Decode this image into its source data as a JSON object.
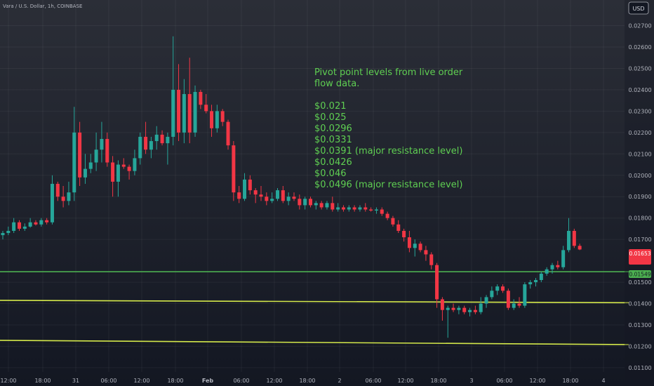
{
  "header": {
    "symbol": "Vara / U.S. Dollar, 1h, COINBASE",
    "currency_button": "USD"
  },
  "annotation": {
    "lines": [
      "Pivot point levels from live order",
      "flow data.",
      "",
      "$0.021",
      "$0.025",
      "$0.0296",
      "$0.0331",
      "$0.0391 (major resistance level)",
      "$0.0426",
      "$0.046",
      "$0.0496 (major resistance level)"
    ],
    "color": "#5fcf52"
  },
  "price_tags": {
    "current": {
      "label": "0.01653",
      "sub": "",
      "color": "#f23645"
    },
    "line": {
      "label": "0.01549",
      "color": "#4caf50"
    }
  },
  "colors": {
    "background": "#131722",
    "up": "#26a69a",
    "down": "#f23645",
    "green_line": "#4caf50",
    "yellow_line": "#d4e84a"
  },
  "chart_data": {
    "type": "candlestick",
    "title": "Vara / U.S. Dollar, 1h, COINBASE",
    "timeframe": "1h",
    "ylim": [
      0.0108,
      0.0282
    ],
    "y_ticks": [
      "0.02700",
      "0.02600",
      "0.02500",
      "0.02400",
      "0.02300",
      "0.02200",
      "0.02100",
      "0.02000",
      "0.01900",
      "0.01800",
      "0.01700",
      "0.01500",
      "0.01400",
      "0.01300",
      "0.01200",
      "0.01100"
    ],
    "x_ticks": [
      "12:00",
      "18:00",
      "31",
      "06:00",
      "12:00",
      "18:00",
      "Feb",
      "06:00",
      "12:00",
      "18:00",
      "2",
      "06:00",
      "12:00",
      "18:00",
      "3",
      "06:00",
      "12:00",
      "18:00",
      "4"
    ],
    "horizontal_lines": [
      {
        "price": 0.01549,
        "color": "#4caf50"
      },
      {
        "from": 0.01415,
        "to": 0.01404,
        "color": "#d4e84a"
      },
      {
        "from": 0.01228,
        "to": 0.01208,
        "color": "#d4e84a"
      }
    ],
    "candles": [
      {
        "o": 0.0172,
        "h": 0.0174,
        "l": 0.017,
        "c": 0.0173
      },
      {
        "o": 0.0173,
        "h": 0.0176,
        "l": 0.0172,
        "c": 0.0174
      },
      {
        "o": 0.0174,
        "h": 0.018,
        "l": 0.0173,
        "c": 0.0178
      },
      {
        "o": 0.0178,
        "h": 0.0179,
        "l": 0.0174,
        "c": 0.0175
      },
      {
        "o": 0.0175,
        "h": 0.01775,
        "l": 0.0174,
        "c": 0.0176
      },
      {
        "o": 0.0176,
        "h": 0.018,
        "l": 0.01755,
        "c": 0.0178
      },
      {
        "o": 0.0178,
        "h": 0.0179,
        "l": 0.01765,
        "c": 0.0177
      },
      {
        "o": 0.0177,
        "h": 0.018,
        "l": 0.0176,
        "c": 0.0179
      },
      {
        "o": 0.0179,
        "h": 0.018,
        "l": 0.0177,
        "c": 0.0178
      },
      {
        "o": 0.0178,
        "h": 0.02,
        "l": 0.0177,
        "c": 0.0196
      },
      {
        "o": 0.0196,
        "h": 0.0197,
        "l": 0.0188,
        "c": 0.019
      },
      {
        "o": 0.019,
        "h": 0.0195,
        "l": 0.0185,
        "c": 0.0188
      },
      {
        "o": 0.0188,
        "h": 0.0197,
        "l": 0.0186,
        "c": 0.0192
      },
      {
        "o": 0.0192,
        "h": 0.0232,
        "l": 0.0188,
        "c": 0.022
      },
      {
        "o": 0.022,
        "h": 0.0225,
        "l": 0.0195,
        "c": 0.0199
      },
      {
        "o": 0.0199,
        "h": 0.021,
        "l": 0.0196,
        "c": 0.0203
      },
      {
        "o": 0.0203,
        "h": 0.021,
        "l": 0.0201,
        "c": 0.0206
      },
      {
        "o": 0.0206,
        "h": 0.022,
        "l": 0.0202,
        "c": 0.0212
      },
      {
        "o": 0.0212,
        "h": 0.0225,
        "l": 0.0206,
        "c": 0.0217
      },
      {
        "o": 0.0217,
        "h": 0.022,
        "l": 0.0204,
        "c": 0.0206
      },
      {
        "o": 0.0206,
        "h": 0.0209,
        "l": 0.019,
        "c": 0.0197
      },
      {
        "o": 0.0197,
        "h": 0.0207,
        "l": 0.019,
        "c": 0.0205
      },
      {
        "o": 0.0205,
        "h": 0.0208,
        "l": 0.0203,
        "c": 0.0204
      },
      {
        "o": 0.0204,
        "h": 0.0205,
        "l": 0.0198,
        "c": 0.0202
      },
      {
        "o": 0.0202,
        "h": 0.0212,
        "l": 0.02,
        "c": 0.0208
      },
      {
        "o": 0.0208,
        "h": 0.022,
        "l": 0.0205,
        "c": 0.0218
      },
      {
        "o": 0.0218,
        "h": 0.0225,
        "l": 0.021,
        "c": 0.0212
      },
      {
        "o": 0.0212,
        "h": 0.0218,
        "l": 0.0208,
        "c": 0.0216
      },
      {
        "o": 0.0216,
        "h": 0.0223,
        "l": 0.0212,
        "c": 0.0219
      },
      {
        "o": 0.0219,
        "h": 0.0221,
        "l": 0.0214,
        "c": 0.0215
      },
      {
        "o": 0.0215,
        "h": 0.022,
        "l": 0.0205,
        "c": 0.0218
      },
      {
        "o": 0.0218,
        "h": 0.0265,
        "l": 0.0214,
        "c": 0.024
      },
      {
        "o": 0.024,
        "h": 0.0252,
        "l": 0.0216,
        "c": 0.022
      },
      {
        "o": 0.022,
        "h": 0.0245,
        "l": 0.0215,
        "c": 0.0238
      },
      {
        "o": 0.0238,
        "h": 0.0255,
        "l": 0.0215,
        "c": 0.022
      },
      {
        "o": 0.022,
        "h": 0.0242,
        "l": 0.0218,
        "c": 0.0239
      },
      {
        "o": 0.0239,
        "h": 0.024,
        "l": 0.0231,
        "c": 0.0233
      },
      {
        "o": 0.0233,
        "h": 0.0238,
        "l": 0.0229,
        "c": 0.023
      },
      {
        "o": 0.023,
        "h": 0.0233,
        "l": 0.0218,
        "c": 0.0222
      },
      {
        "o": 0.0222,
        "h": 0.0233,
        "l": 0.022,
        "c": 0.023
      },
      {
        "o": 0.023,
        "h": 0.0231,
        "l": 0.0223,
        "c": 0.0225
      },
      {
        "o": 0.0225,
        "h": 0.0226,
        "l": 0.0212,
        "c": 0.0214
      },
      {
        "o": 0.0214,
        "h": 0.0216,
        "l": 0.0188,
        "c": 0.0192
      },
      {
        "o": 0.0192,
        "h": 0.0195,
        "l": 0.0187,
        "c": 0.0189
      },
      {
        "o": 0.0189,
        "h": 0.0201,
        "l": 0.0188,
        "c": 0.0198
      },
      {
        "o": 0.0198,
        "h": 0.02,
        "l": 0.0191,
        "c": 0.0193
      },
      {
        "o": 0.0193,
        "h": 0.0194,
        "l": 0.0187,
        "c": 0.0191
      },
      {
        "o": 0.0191,
        "h": 0.0195,
        "l": 0.0188,
        "c": 0.019
      },
      {
        "o": 0.019,
        "h": 0.0192,
        "l": 0.0186,
        "c": 0.0188
      },
      {
        "o": 0.0188,
        "h": 0.0192,
        "l": 0.0187,
        "c": 0.0189
      },
      {
        "o": 0.0189,
        "h": 0.0194,
        "l": 0.0188,
        "c": 0.0193
      },
      {
        "o": 0.0193,
        "h": 0.0195,
        "l": 0.0187,
        "c": 0.0188
      },
      {
        "o": 0.0188,
        "h": 0.0192,
        "l": 0.0186,
        "c": 0.019
      },
      {
        "o": 0.019,
        "h": 0.0192,
        "l": 0.0188,
        "c": 0.0189
      },
      {
        "o": 0.0189,
        "h": 0.0191,
        "l": 0.0184,
        "c": 0.0186
      },
      {
        "o": 0.0186,
        "h": 0.019,
        "l": 0.0184,
        "c": 0.0189
      },
      {
        "o": 0.0189,
        "h": 0.019,
        "l": 0.0185,
        "c": 0.0186
      },
      {
        "o": 0.0186,
        "h": 0.0188,
        "l": 0.0184,
        "c": 0.0187
      },
      {
        "o": 0.0187,
        "h": 0.0188,
        "l": 0.0184,
        "c": 0.0185
      },
      {
        "o": 0.0185,
        "h": 0.0188,
        "l": 0.0184,
        "c": 0.0187
      },
      {
        "o": 0.0187,
        "h": 0.019,
        "l": 0.0183,
        "c": 0.0184
      },
      {
        "o": 0.0184,
        "h": 0.0187,
        "l": 0.0183,
        "c": 0.0185
      },
      {
        "o": 0.0185,
        "h": 0.0186,
        "l": 0.0183,
        "c": 0.0184
      },
      {
        "o": 0.0184,
        "h": 0.0186,
        "l": 0.0183,
        "c": 0.0185
      },
      {
        "o": 0.0185,
        "h": 0.0186,
        "l": 0.0183,
        "c": 0.0184
      },
      {
        "o": 0.0184,
        "h": 0.0186,
        "l": 0.0183,
        "c": 0.0185
      },
      {
        "o": 0.0185,
        "h": 0.0187,
        "l": 0.0183,
        "c": 0.0184
      },
      {
        "o": 0.0184,
        "h": 0.0185,
        "l": 0.0183,
        "c": 0.01835
      },
      {
        "o": 0.01835,
        "h": 0.0185,
        "l": 0.0182,
        "c": 0.0184
      },
      {
        "o": 0.0184,
        "h": 0.0185,
        "l": 0.0181,
        "c": 0.0182
      },
      {
        "o": 0.0182,
        "h": 0.0183,
        "l": 0.0179,
        "c": 0.018
      },
      {
        "o": 0.018,
        "h": 0.0181,
        "l": 0.0176,
        "c": 0.0177
      },
      {
        "o": 0.0177,
        "h": 0.0179,
        "l": 0.0173,
        "c": 0.0174
      },
      {
        "o": 0.0174,
        "h": 0.0175,
        "l": 0.0169,
        "c": 0.0171
      },
      {
        "o": 0.0171,
        "h": 0.0174,
        "l": 0.0164,
        "c": 0.0166
      },
      {
        "o": 0.0166,
        "h": 0.017,
        "l": 0.0162,
        "c": 0.0168
      },
      {
        "o": 0.0168,
        "h": 0.0169,
        "l": 0.0164,
        "c": 0.0165
      },
      {
        "o": 0.0165,
        "h": 0.0167,
        "l": 0.016,
        "c": 0.0163
      },
      {
        "o": 0.0163,
        "h": 0.0164,
        "l": 0.0156,
        "c": 0.0158
      },
      {
        "o": 0.0158,
        "h": 0.0159,
        "l": 0.0138,
        "c": 0.0142
      },
      {
        "o": 0.0142,
        "h": 0.0143,
        "l": 0.0132,
        "c": 0.0137
      },
      {
        "o": 0.0137,
        "h": 0.0139,
        "l": 0.0124,
        "c": 0.0138
      },
      {
        "o": 0.0138,
        "h": 0.014,
        "l": 0.0136,
        "c": 0.0137
      },
      {
        "o": 0.0137,
        "h": 0.0139,
        "l": 0.0135,
        "c": 0.0138
      },
      {
        "o": 0.0138,
        "h": 0.0139,
        "l": 0.0135,
        "c": 0.0136
      },
      {
        "o": 0.0136,
        "h": 0.0138,
        "l": 0.0134,
        "c": 0.0137
      },
      {
        "o": 0.0137,
        "h": 0.0139,
        "l": 0.0135,
        "c": 0.0136
      },
      {
        "o": 0.0136,
        "h": 0.0143,
        "l": 0.0135,
        "c": 0.014
      },
      {
        "o": 0.014,
        "h": 0.0144,
        "l": 0.0138,
        "c": 0.0143
      },
      {
        "o": 0.0143,
        "h": 0.0148,
        "l": 0.0142,
        "c": 0.0146
      },
      {
        "o": 0.0146,
        "h": 0.0149,
        "l": 0.0144,
        "c": 0.0148
      },
      {
        "o": 0.0148,
        "h": 0.0149,
        "l": 0.0145,
        "c": 0.0146
      },
      {
        "o": 0.0146,
        "h": 0.0147,
        "l": 0.0137,
        "c": 0.0138
      },
      {
        "o": 0.0138,
        "h": 0.0142,
        "l": 0.0137,
        "c": 0.014
      },
      {
        "o": 0.014,
        "h": 0.0143,
        "l": 0.0138,
        "c": 0.0139
      },
      {
        "o": 0.0139,
        "h": 0.015,
        "l": 0.0138,
        "c": 0.0149
      },
      {
        "o": 0.0149,
        "h": 0.0151,
        "l": 0.0147,
        "c": 0.015
      },
      {
        "o": 0.015,
        "h": 0.0152,
        "l": 0.0148,
        "c": 0.0151
      },
      {
        "o": 0.0151,
        "h": 0.0155,
        "l": 0.015,
        "c": 0.0154
      },
      {
        "o": 0.0154,
        "h": 0.0157,
        "l": 0.0153,
        "c": 0.0156
      },
      {
        "o": 0.0156,
        "h": 0.0159,
        "l": 0.0154,
        "c": 0.0158
      },
      {
        "o": 0.0158,
        "h": 0.016,
        "l": 0.0156,
        "c": 0.0157
      },
      {
        "o": 0.0157,
        "h": 0.0167,
        "l": 0.0156,
        "c": 0.0165
      },
      {
        "o": 0.0165,
        "h": 0.018,
        "l": 0.0164,
        "c": 0.0174
      },
      {
        "o": 0.0174,
        "h": 0.0175,
        "l": 0.0166,
        "c": 0.0167
      },
      {
        "o": 0.0167,
        "h": 0.0168,
        "l": 0.0165,
        "c": 0.01653
      }
    ]
  }
}
